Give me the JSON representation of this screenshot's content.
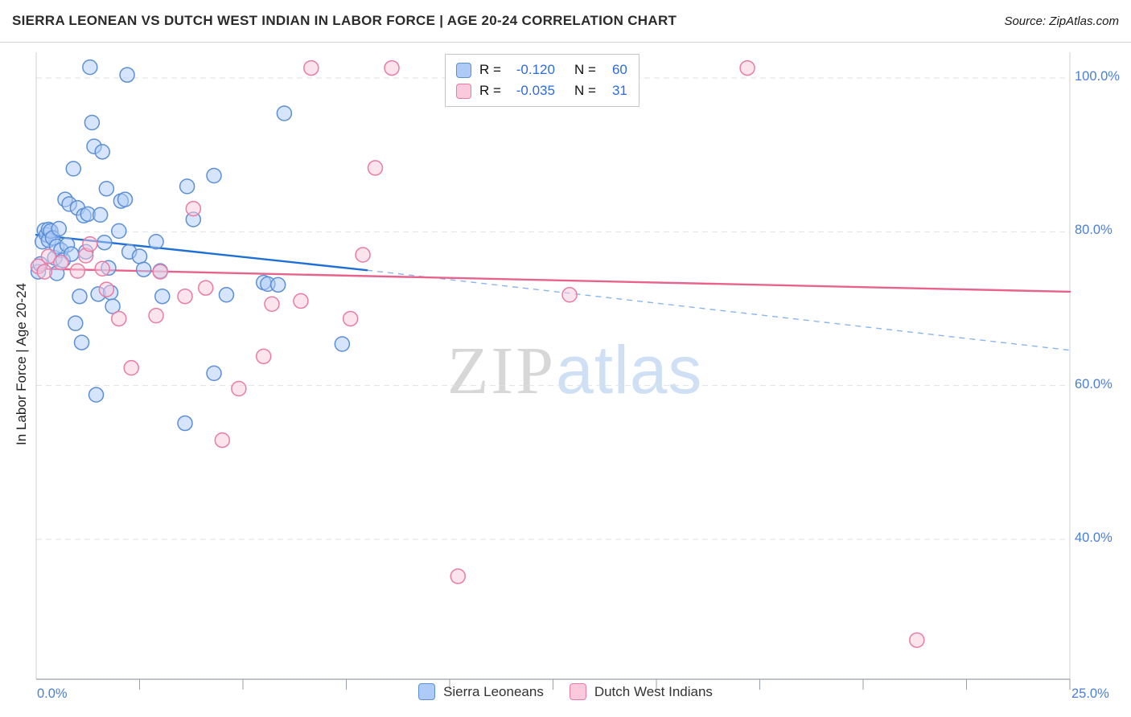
{
  "header": {
    "title": "SIERRA LEONEAN VS DUTCH WEST INDIAN IN LABOR FORCE | AGE 20-24 CORRELATION CHART",
    "source": "Source: ZipAtlas.com"
  },
  "watermark": {
    "part1": "ZIP",
    "part2": "atlas"
  },
  "y_axis": {
    "title": "In Labor Force | Age 20-24",
    "tick_labels": [
      "100.0%",
      "80.0%",
      "60.0%",
      "40.0%"
    ],
    "tick_values": [
      100,
      80,
      60,
      40
    ]
  },
  "x_axis": {
    "min_label": "0.0%",
    "max_label": "25.0%",
    "min": 0,
    "max": 25
  },
  "legend_box": {
    "rows": [
      {
        "r_label": "R =",
        "r": "-0.120",
        "n_label": "N =",
        "n": "60"
      },
      {
        "r_label": "R =",
        "r": "-0.035",
        "n_label": "N =",
        "n": "31"
      }
    ]
  },
  "bottom_legend": [
    {
      "label": "Sierra Leoneans"
    },
    {
      "label": "Dutch West Indians"
    }
  ],
  "colors": {
    "axis_label_blue": "#4a7fd4",
    "grid": "#dde2e8",
    "spine": "#cdd1d6",
    "axis_line": "#9aa0a6"
  },
  "chart_data": {
    "type": "scatter",
    "title": "SIERRA LEONEAN VS DUTCH WEST INDIAN IN LABOR FORCE | AGE 20-24 CORRELATION CHART",
    "xlabel": "",
    "ylabel": "In Labor Force | Age 20-24",
    "xlim": [
      0,
      25
    ],
    "ylim": [
      22,
      103
    ],
    "y_gridlines": [
      100,
      80,
      60,
      40
    ],
    "grid": "dashed-horizontal",
    "legend_position": "top-center",
    "series": [
      {
        "name": "Sierra Leoneans",
        "r": -0.12,
        "n": 60,
        "color": "#5c8fd6",
        "fill": "#aecbf7",
        "point_name": "data-point-sierra-leonean",
        "points": [
          [
            0.05,
            74.8
          ],
          [
            0.1,
            75.8
          ],
          [
            0.15,
            78.7
          ],
          [
            0.2,
            80.2
          ],
          [
            0.25,
            79.6
          ],
          [
            0.3,
            80.3
          ],
          [
            0.3,
            78.9
          ],
          [
            0.35,
            80.1
          ],
          [
            0.4,
            79.2
          ],
          [
            0.45,
            76.6
          ],
          [
            0.5,
            78.1
          ],
          [
            0.5,
            74.6
          ],
          [
            0.55,
            80.4
          ],
          [
            0.6,
            77.6
          ],
          [
            0.65,
            76.3
          ],
          [
            0.7,
            84.2
          ],
          [
            0.75,
            78.3
          ],
          [
            0.8,
            83.6
          ],
          [
            0.85,
            77.1
          ],
          [
            0.9,
            88.2
          ],
          [
            0.95,
            68.1
          ],
          [
            1.0,
            83.1
          ],
          [
            1.05,
            71.6
          ],
          [
            1.1,
            65.6
          ],
          [
            1.15,
            82.1
          ],
          [
            1.2,
            77.4
          ],
          [
            1.25,
            82.3
          ],
          [
            1.3,
            101.4
          ],
          [
            1.35,
            94.2
          ],
          [
            1.4,
            91.1
          ],
          [
            1.45,
            58.8
          ],
          [
            1.5,
            71.9
          ],
          [
            1.55,
            82.2
          ],
          [
            1.6,
            90.4
          ],
          [
            1.65,
            78.6
          ],
          [
            1.7,
            85.6
          ],
          [
            1.75,
            75.3
          ],
          [
            1.8,
            72.1
          ],
          [
            1.85,
            70.3
          ],
          [
            2.0,
            80.1
          ],
          [
            2.05,
            84.0
          ],
          [
            2.15,
            84.2
          ],
          [
            2.2,
            100.4
          ],
          [
            2.25,
            77.4
          ],
          [
            2.5,
            76.8
          ],
          [
            2.6,
            75.1
          ],
          [
            2.9,
            78.7
          ],
          [
            3.0,
            74.9
          ],
          [
            3.05,
            71.6
          ],
          [
            3.6,
            55.1
          ],
          [
            3.65,
            85.9
          ],
          [
            3.8,
            81.6
          ],
          [
            4.3,
            87.3
          ],
          [
            4.3,
            61.6
          ],
          [
            4.6,
            71.8
          ],
          [
            5.5,
            73.4
          ],
          [
            5.6,
            73.2
          ],
          [
            5.85,
            73.1
          ],
          [
            6.0,
            95.4
          ],
          [
            7.4,
            65.4
          ]
        ]
      },
      {
        "name": "Dutch West Indians",
        "r": -0.035,
        "n": 31,
        "color": "#e87ca6",
        "fill": "#fac9db",
        "point_name": "data-point-dutch-west-indian",
        "points": [
          [
            0.05,
            75.5
          ],
          [
            0.2,
            74.8
          ],
          [
            0.3,
            76.8
          ],
          [
            0.6,
            76.0
          ],
          [
            1.0,
            74.9
          ],
          [
            1.2,
            76.9
          ],
          [
            1.3,
            78.4
          ],
          [
            1.6,
            75.2
          ],
          [
            1.7,
            72.5
          ],
          [
            2.0,
            68.7
          ],
          [
            2.3,
            62.3
          ],
          [
            2.9,
            69.1
          ],
          [
            3.0,
            74.8
          ],
          [
            3.6,
            71.6
          ],
          [
            3.8,
            83.0
          ],
          [
            4.1,
            72.7
          ],
          [
            4.5,
            52.9
          ],
          [
            4.9,
            59.6
          ],
          [
            5.5,
            63.8
          ],
          [
            5.7,
            70.6
          ],
          [
            6.4,
            71.0
          ],
          [
            6.65,
            101.3
          ],
          [
            7.6,
            68.7
          ],
          [
            7.9,
            77.0
          ],
          [
            8.2,
            88.3
          ],
          [
            8.6,
            101.3
          ],
          [
            10.2,
            35.2
          ],
          [
            12.9,
            71.8
          ],
          [
            13.4,
            101.3
          ],
          [
            17.2,
            101.3
          ],
          [
            21.3,
            26.9
          ]
        ]
      }
    ],
    "trend_lines": [
      {
        "series": "Sierra Leoneans",
        "color": "#1e6fd6",
        "dash_color": "#8ab5ec",
        "solid": [
          [
            0,
            79.6
          ],
          [
            8,
            75.0
          ]
        ],
        "dashed": [
          [
            8,
            75.0
          ],
          [
            25,
            64.6
          ]
        ]
      },
      {
        "series": "Dutch West Indians",
        "color": "#e8638c",
        "solid": [
          [
            0,
            75.2
          ],
          [
            25,
            72.2
          ]
        ]
      }
    ]
  }
}
